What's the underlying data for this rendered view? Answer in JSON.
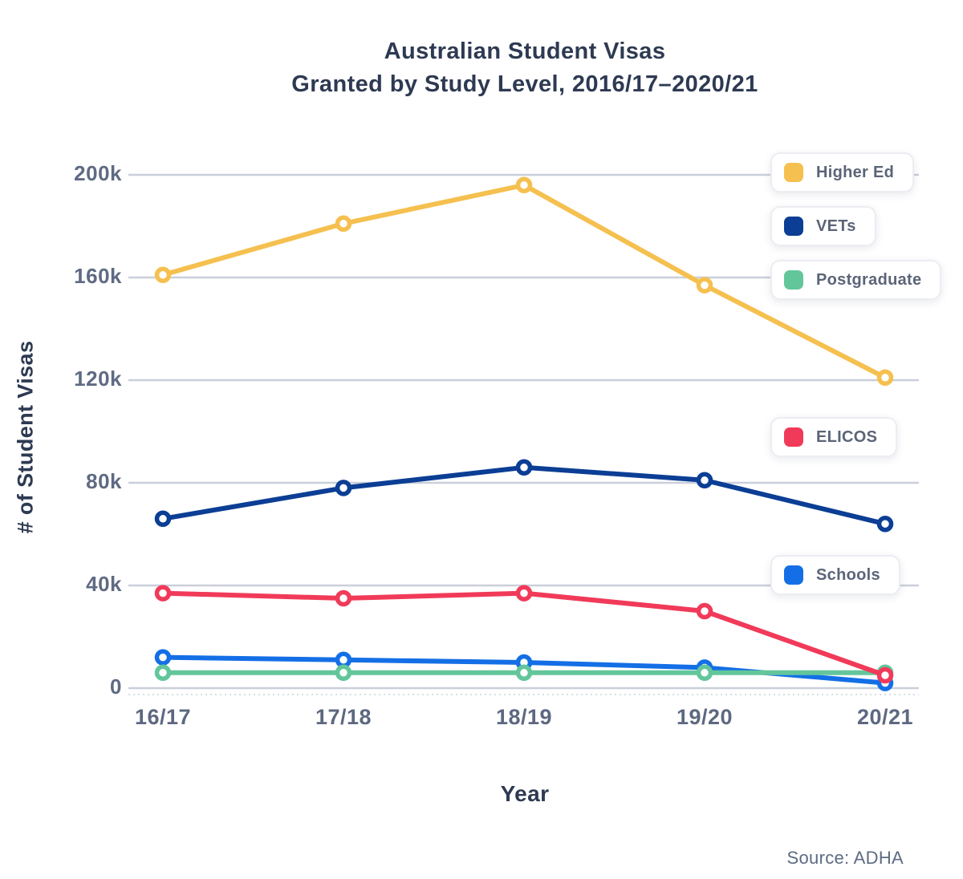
{
  "title": {
    "line1": "Australian Student Visas",
    "line2": "Granted by Study Level, 2016/17–2020/21"
  },
  "axes": {
    "y_title": "# of Student Visas",
    "x_title": "Year",
    "y_ticks": [
      "200k",
      "160k",
      "120k",
      "80k",
      "40k",
      "0"
    ],
    "y_tick_values": [
      200,
      160,
      120,
      80,
      40,
      0
    ]
  },
  "source": "Source: ADHA",
  "colors": {
    "grid": "#c9cfda",
    "title_text": "#2e3a52",
    "tick_text": "#5f6a83",
    "legend_text": "#5b6478"
  },
  "chart_data": {
    "type": "line",
    "title": "Australian Student Visas Granted by Study Level, 2016/17–2020/21",
    "xlabel": "Year",
    "ylabel": "# of Student Visas",
    "categories": [
      "16/17",
      "17/18",
      "18/19",
      "19/20",
      "20/21"
    ],
    "unit": "thousands of visas granted",
    "ylim": [
      0,
      200
    ],
    "grid": true,
    "legend_position": "right-overlay",
    "series": [
      {
        "key": "higher_ed",
        "name": "Higher Ed",
        "color": "#F5C04F",
        "values": [
          161,
          181,
          196,
          157,
          121
        ]
      },
      {
        "key": "vets",
        "name": "VETs",
        "color": "#0B3E94",
        "values": [
          66,
          78,
          86,
          81,
          64
        ]
      },
      {
        "key": "schools",
        "name": "Schools",
        "color": "#146FE6",
        "values": [
          12,
          11,
          10,
          8,
          2
        ]
      },
      {
        "key": "postgraduate",
        "name": "Postgraduate",
        "color": "#63C69B",
        "values": [
          6,
          6,
          6,
          6,
          6
        ]
      },
      {
        "key": "elicos",
        "name": "ELICOS",
        "color": "#F13A59",
        "values": [
          37,
          35,
          37,
          30,
          5
        ]
      }
    ]
  }
}
